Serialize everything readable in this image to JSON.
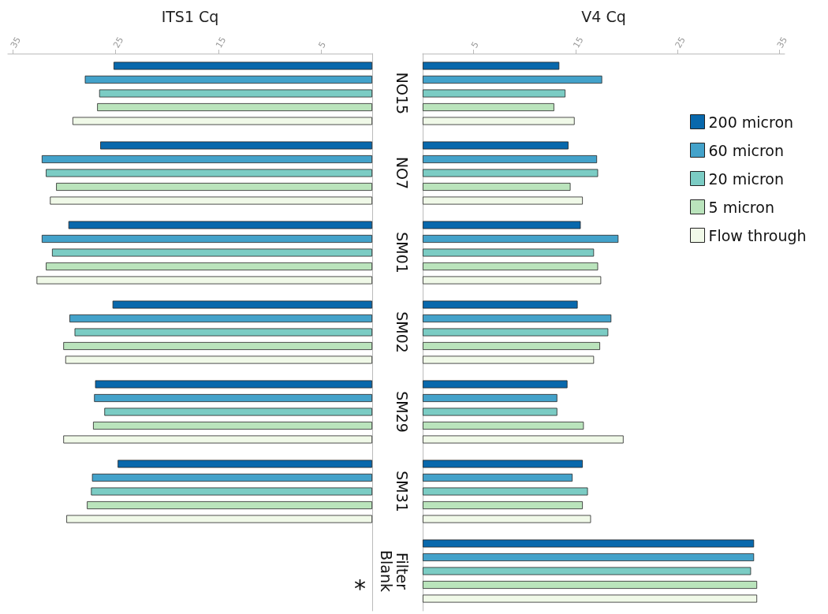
{
  "chart_data": [
    {
      "type": "bar",
      "orientation": "horizontal",
      "xlabel": "ITS1 Cq",
      "categories": [
        null,
        null,
        null,
        null,
        null,
        null,
        null
      ],
      "xlim": [
        35.5,
        0
      ],
      "xticks": [
        5,
        15,
        25,
        35
      ],
      "tick_labels": "x",
      "legend": false,
      "grid": false,
      "annotations": [
        "*"
      ],
      "series": [
        {
          "color": "#0868ac",
          "values": [
            25.2,
            26.5,
            29.6,
            25.3,
            27.0,
            24.8,
            null
          ]
        },
        {
          "color": "#43a2ca",
          "values": [
            28.0,
            32.2,
            32.2,
            29.5,
            27.1,
            27.3,
            null
          ]
        },
        {
          "color": "#7bccc4",
          "values": [
            26.6,
            31.8,
            31.2,
            29.0,
            26.1,
            27.4,
            null
          ]
        },
        {
          "color": "#bae4bc",
          "values": [
            26.8,
            30.8,
            31.8,
            30.1,
            27.2,
            27.8,
            null
          ]
        },
        {
          "color": "#f0f9e8",
          "values": [
            29.2,
            31.4,
            32.7,
            29.9,
            30.1,
            29.8,
            null
          ]
        }
      ]
    },
    {
      "type": "bar",
      "orientation": "horizontal",
      "xlabel": "V4 Cq",
      "categories": [
        "NO15",
        "NO7",
        "SM01",
        "SM02",
        "SM29",
        "SM31",
        "Filter\nBlank"
      ],
      "xlim": [
        0,
        35.5
      ],
      "xticks": [
        5,
        15,
        25,
        35
      ],
      "legend": "right",
      "grid": false,
      "series": [
        {
          "name": "200 micron",
          "color": "#0868ac",
          "values": [
            13.4,
            14.3,
            15.5,
            15.2,
            14.2,
            15.7,
            32.5
          ]
        },
        {
          "name": "60 micron",
          "color": "#43a2ca",
          "values": [
            17.6,
            17.1,
            19.2,
            18.5,
            13.2,
            14.7,
            32.5
          ]
        },
        {
          "name": "20 micron",
          "color": "#7bccc4",
          "values": [
            14.0,
            17.2,
            16.8,
            18.2,
            13.2,
            16.2,
            32.2
          ]
        },
        {
          "name": "5 micron",
          "color": "#bae4bc",
          "values": [
            12.9,
            14.5,
            17.2,
            17.4,
            15.8,
            15.7,
            32.8
          ]
        },
        {
          "name": "Flow through",
          "color": "#f0f9e8",
          "values": [
            14.9,
            15.7,
            17.5,
            16.8,
            19.7,
            16.5,
            32.8
          ]
        }
      ]
    }
  ]
}
